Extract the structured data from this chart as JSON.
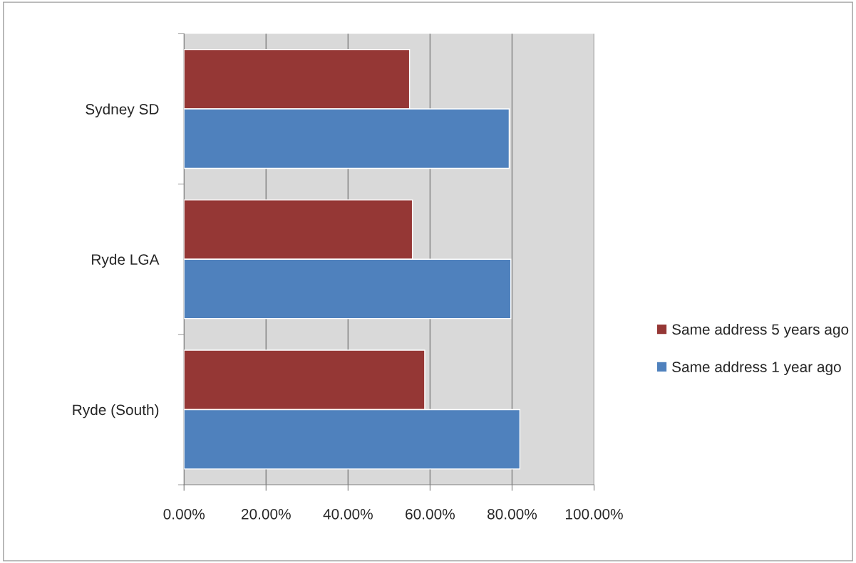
{
  "chart_data": {
    "type": "bar",
    "orientation": "horizontal",
    "categories": [
      "Sydney SD",
      "Ryde LGA",
      "Ryde (South)"
    ],
    "series": [
      {
        "name": "Same address 5 years ago",
        "color": "#953735",
        "values": [
          55.0,
          55.7,
          58.7
        ]
      },
      {
        "name": "Same address 1 year ago",
        "color": "#4f81bd",
        "values": [
          79.3,
          79.7,
          81.9
        ]
      }
    ],
    "xlim": [
      0,
      100
    ],
    "xticks": [
      {
        "value": 0,
        "label": "0.00%"
      },
      {
        "value": 20,
        "label": "20.00%"
      },
      {
        "value": 40,
        "label": "40.00%"
      },
      {
        "value": 60,
        "label": "60.00%"
      },
      {
        "value": 80,
        "label": "80.00%"
      },
      {
        "value": 100,
        "label": "100.00%"
      }
    ],
    "grid": "x",
    "legend": "right"
  }
}
